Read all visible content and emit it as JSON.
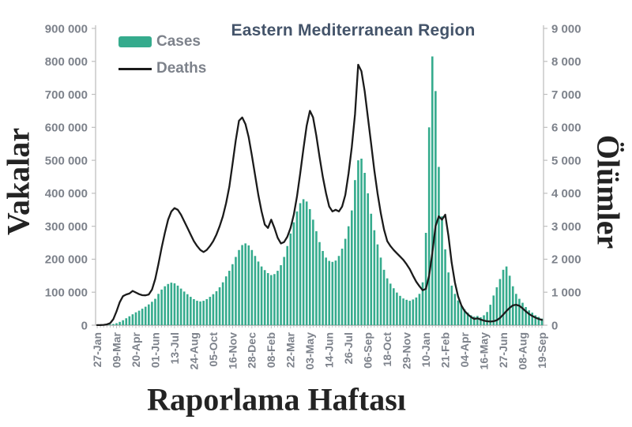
{
  "chart_data": {
    "type": "combo-bar-line",
    "title": "Eastern Mediterranean Region",
    "xlabel": "Raporlama Haftası",
    "ylabel_left": "Vakalar",
    "ylabel_right": "Ölümler",
    "grid": false,
    "legend_position": "top-left",
    "n_weeks": 139,
    "x_tick_every": 6,
    "x_tick_labels": [
      "27-Jan",
      "09-Mar",
      "20-Apr",
      "01-Jun",
      "13-Jul",
      "24-Aug",
      "05-Oct",
      "16-Nov",
      "28-Dec",
      "08-Feb",
      "22-Mar",
      "03-May",
      "14-Jun",
      "26-Jul",
      "06-Sep",
      "18-Oct",
      "29-Nov",
      "10-Jan",
      "21-Feb",
      "04-Apr",
      "16-May",
      "27-Jun",
      "08-Aug",
      "19-Sep"
    ],
    "left_axis": {
      "min": 0,
      "max": 900000,
      "tick_step": 100000,
      "tick_labels": [
        "0",
        "100 000",
        "200 000",
        "300 000",
        "400 000",
        "500 000",
        "600 000",
        "700 000",
        "800 000",
        "900 000"
      ]
    },
    "right_axis": {
      "min": 0,
      "max": 9000,
      "tick_step": 1000,
      "tick_labels": [
        "0",
        "1 000",
        "2 000",
        "3 000",
        "4 000",
        "5 000",
        "6 000",
        "7 000",
        "8 000",
        "9 000"
      ]
    },
    "series": [
      {
        "name": "Cases",
        "type": "bar",
        "axis": "left",
        "color": "#35ab8d",
        "values": [
          200,
          400,
          700,
          1200,
          2000,
          3500,
          6000,
          10000,
          15000,
          21000,
          27000,
          33000,
          39000,
          44000,
          50000,
          56000,
          63000,
          71000,
          80000,
          95000,
          108000,
          118000,
          125000,
          129000,
          127000,
          120000,
          111000,
          102000,
          94000,
          86000,
          79000,
          74000,
          72000,
          74000,
          79000,
          86000,
          94000,
          103000,
          115000,
          130000,
          148000,
          165000,
          185000,
          207000,
          228000,
          243000,
          248000,
          242000,
          228000,
          210000,
          193000,
          178000,
          167000,
          158000,
          152000,
          155000,
          165000,
          182000,
          207000,
          240000,
          278000,
          312000,
          345000,
          370000,
          382000,
          375000,
          352000,
          320000,
          285000,
          252000,
          225000,
          205000,
          195000,
          192000,
          196000,
          210000,
          232000,
          262000,
          300000,
          348000,
          440000,
          500000,
          505000,
          462000,
          400000,
          338000,
          288000,
          245000,
          205000,
          168000,
          142000,
          126000,
          112000,
          99000,
          89000,
          81000,
          77000,
          74000,
          78000,
          84000,
          95000,
          130000,
          280000,
          600000,
          815000,
          710000,
          480000,
          330000,
          230000,
          160000,
          120000,
          95000,
          75000,
          60000,
          48000,
          38000,
          30000,
          26000,
          28000,
          24000,
          30000,
          40000,
          62000,
          90000,
          115000,
          140000,
          168000,
          178000,
          150000,
          118000,
          95000,
          80000,
          68000,
          55000,
          45000,
          38000,
          30000,
          25000,
          20000
        ]
      },
      {
        "name": "Deaths",
        "type": "line",
        "axis": "right",
        "color": "#1b1b1b",
        "values": [
          2,
          5,
          10,
          25,
          60,
          180,
          420,
          700,
          880,
          930,
          960,
          1040,
          990,
          940,
          910,
          905,
          930,
          1080,
          1400,
          1850,
          2350,
          2800,
          3200,
          3450,
          3550,
          3500,
          3350,
          3150,
          2950,
          2750,
          2550,
          2400,
          2280,
          2220,
          2280,
          2400,
          2550,
          2750,
          3000,
          3300,
          3700,
          4200,
          4900,
          5600,
          6200,
          6300,
          6100,
          5700,
          5150,
          4550,
          3950,
          3450,
          3050,
          2950,
          3200,
          2950,
          2650,
          2480,
          2520,
          2680,
          2950,
          3350,
          3900,
          4600,
          5350,
          6050,
          6500,
          6300,
          5750,
          5100,
          4500,
          4000,
          3600,
          3450,
          3500,
          3450,
          3600,
          3950,
          4600,
          5400,
          6400,
          7900,
          7700,
          7100,
          6300,
          5500,
          4700,
          4000,
          3400,
          2900,
          2550,
          2400,
          2280,
          2180,
          2080,
          1980,
          1850,
          1700,
          1500,
          1320,
          1180,
          1060,
          1100,
          1500,
          2200,
          3000,
          3300,
          3200,
          3350,
          2700,
          1900,
          1300,
          870,
          600,
          430,
          330,
          250,
          190,
          210,
          170,
          140,
          120,
          110,
          120,
          150,
          220,
          320,
          430,
          530,
          600,
          620,
          590,
          510,
          420,
          340,
          280,
          230,
          190,
          160
        ]
      }
    ],
    "style": {
      "axis_color": "#bfbfbf",
      "tick_color": "#b3b3b3",
      "tick_text_color": "#7d828b",
      "title_color": "#44546a",
      "serif_label_color": "#232323",
      "background": "#ffffff"
    }
  }
}
